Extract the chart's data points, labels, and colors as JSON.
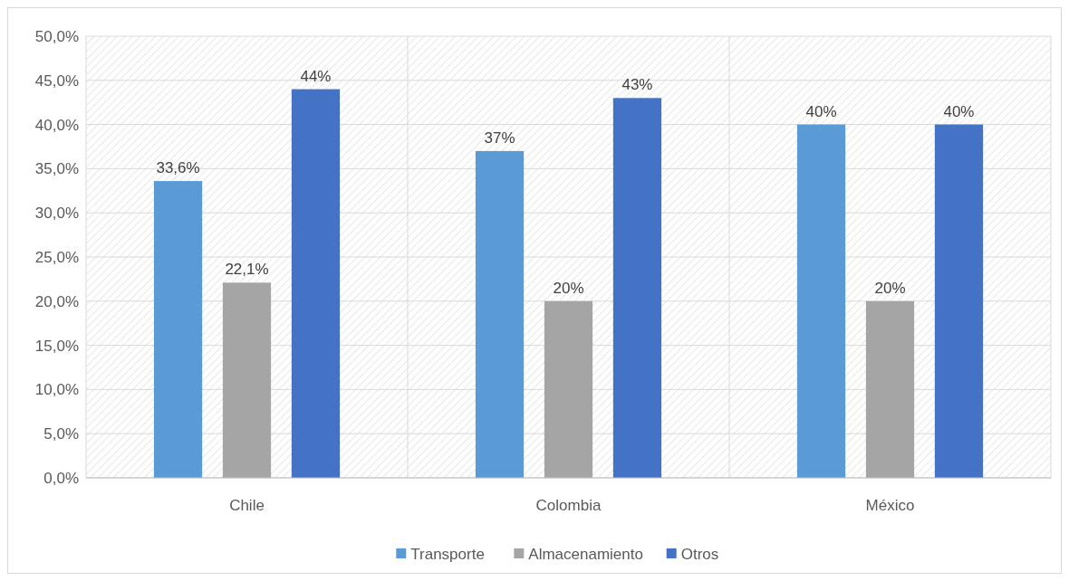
{
  "chart_data": {
    "type": "bar",
    "categories": [
      "Chile",
      "Colombia",
      "México"
    ],
    "series": [
      {
        "name": "Transporte",
        "color": "#5b9bd5",
        "values": [
          33.6,
          37,
          40
        ],
        "value_labels": [
          "33,6%",
          "37%",
          "40%"
        ]
      },
      {
        "name": "Almacenamiento",
        "color": "#a5a5a5",
        "values": [
          22.1,
          20,
          20
        ],
        "value_labels": [
          "22,1%",
          "20%",
          "20%"
        ]
      },
      {
        "name": "Otros",
        "color": "#4472c4",
        "values": [
          44,
          43,
          40
        ],
        "value_labels": [
          "44%",
          "43%",
          "40%"
        ]
      }
    ],
    "ylim": [
      0,
      50
    ],
    "yticks": [
      {
        "value": 0,
        "label": "0,0%"
      },
      {
        "value": 5,
        "label": "5,0%"
      },
      {
        "value": 10,
        "label": "10,0%"
      },
      {
        "value": 15,
        "label": "15,0%"
      },
      {
        "value": 20,
        "label": "20,0%"
      },
      {
        "value": 25,
        "label": "25,0%"
      },
      {
        "value": 30,
        "label": "30,0%"
      },
      {
        "value": 35,
        "label": "35,0%"
      },
      {
        "value": 40,
        "label": "40,0%"
      },
      {
        "value": 45,
        "label": "45,0%"
      },
      {
        "value": 50,
        "label": "50,0%"
      }
    ],
    "grid": true,
    "legend": "bottom"
  }
}
